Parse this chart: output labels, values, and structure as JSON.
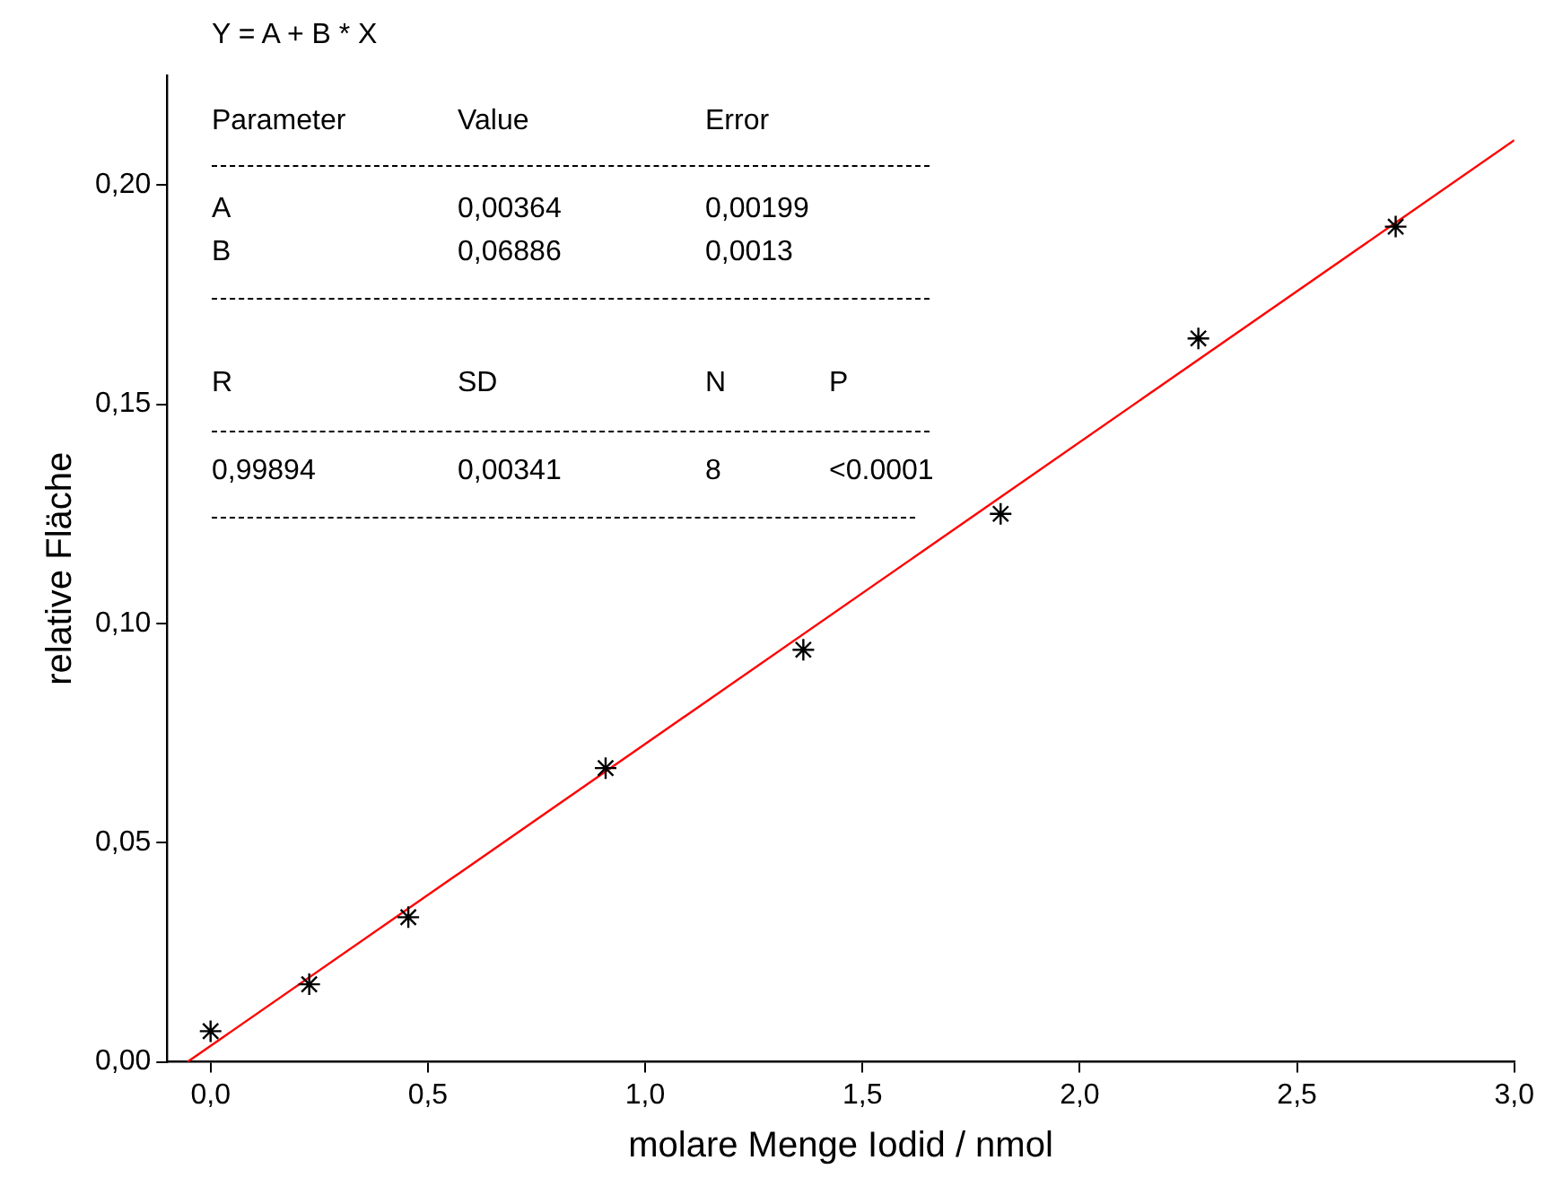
{
  "chart_data": {
    "type": "scatter",
    "xlabel": "molare Menge Iodid / nmol",
    "ylabel": "relative Fläche",
    "xlim": [
      -0.1,
      3.0
    ],
    "ylim": [
      0,
      0.225
    ],
    "xticks": [
      {
        "value": 0,
        "label": "0,0"
      },
      {
        "value": 0.5,
        "label": "0,5"
      },
      {
        "value": 1,
        "label": "1,0"
      },
      {
        "value": 1.5,
        "label": "1,5"
      },
      {
        "value": 2,
        "label": "2,0"
      },
      {
        "value": 2.5,
        "label": "2,5"
      },
      {
        "value": 3,
        "label": "3,0"
      }
    ],
    "yticks": [
      {
        "value": 0,
        "label": "0,00"
      },
      {
        "value": 0.05,
        "label": "0,05"
      },
      {
        "value": 0.1,
        "label": "0,10"
      },
      {
        "value": 0.15,
        "label": "0,15"
      },
      {
        "value": 0.2,
        "label": "0,20"
      }
    ],
    "grid": false,
    "legend": false,
    "series": [
      {
        "type": "scatter",
        "color": "#000000",
        "marker": "cross",
        "x": [
          0,
          0.227,
          0.455,
          0.909,
          1.364,
          1.818,
          2.273,
          2.727
        ],
        "values": [
          0.007,
          0.0177,
          0.033,
          0.067,
          0.094,
          0.125,
          0.165,
          0.1905
        ]
      },
      {
        "type": "line",
        "color": "#ff0000",
        "marker": "none",
        "line_style": "solid",
        "x": [
          -0.053,
          3.0
        ],
        "values": [
          0,
          0.2102
        ]
      }
    ],
    "annotations": [
      "Y = A + B * X",
      "Parameter\tValue\tError",
      "A\t0,00364\t0,00199",
      "B\t0,06886\t0,0013",
      "R\tSD\tN\tP",
      "0,99894\t0,00341\t8\t<0.0001"
    ]
  }
}
